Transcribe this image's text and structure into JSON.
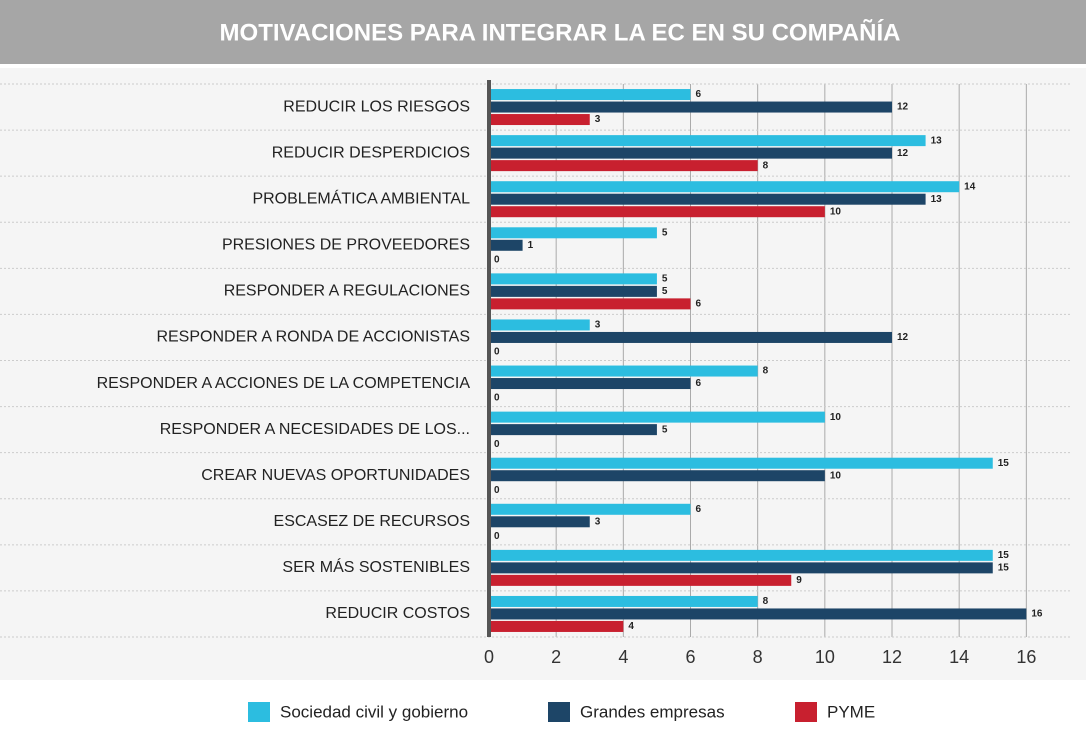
{
  "chart_data": {
    "type": "hbar",
    "title": "MOTIVACIONES PARA INTEGRAR LA EC EN SU COMPAÑÍA",
    "categories": [
      "REDUCIR LOS RIESGOS",
      "REDUCIR DESPERDICIOS",
      "PROBLEMÁTICA AMBIENTAL",
      "PRESIONES DE PROVEEDORES",
      "RESPONDER A REGULACIONES",
      "RESPONDER A RONDA DE ACCIONISTAS",
      "RESPONDER A ACCIONES DE LA COMPETENCIA",
      "RESPONDER A NECESIDADES DE LOS...",
      "CREAR NUEVAS OPORTUNIDADES",
      "ESCASEZ DE RECURSOS",
      "SER MÁS SOSTENIBLES",
      "REDUCIR COSTOS"
    ],
    "series": [
      {
        "name": "Sociedad civil y gobierno",
        "color": "#2cbde0",
        "values": [
          6,
          13,
          14,
          5,
          5,
          3,
          8,
          10,
          15,
          6,
          15,
          8
        ]
      },
      {
        "name": "Grandes empresas",
        "color": "#1d4567",
        "values": [
          12,
          12,
          13,
          1,
          5,
          12,
          6,
          5,
          10,
          3,
          15,
          16
        ]
      },
      {
        "name": "PYME",
        "color": "#c8202f",
        "values": [
          3,
          8,
          10,
          0,
          6,
          0,
          0,
          0,
          0,
          0,
          9,
          4
        ]
      }
    ],
    "xlim": [
      0,
      17.3
    ],
    "xticks": [
      0,
      2,
      4,
      6,
      8,
      10,
      12,
      14,
      16
    ],
    "grid": true,
    "legend": "bottom"
  }
}
